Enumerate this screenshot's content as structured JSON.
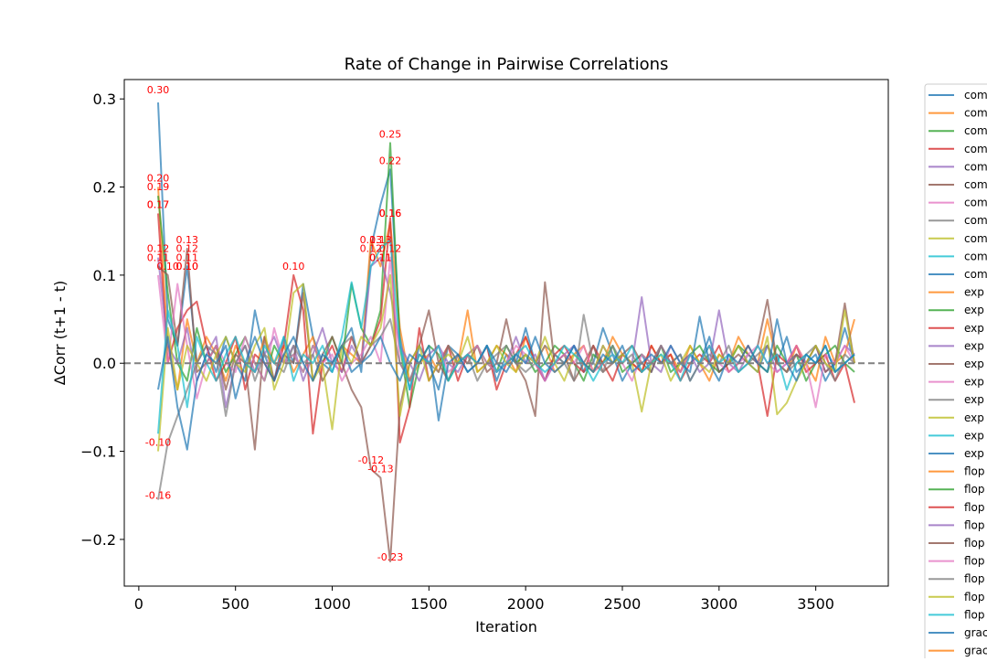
{
  "chart_data": {
    "type": "line",
    "title": "Rate of Change in Pairwise Correlations",
    "xlabel": "Iteration",
    "ylabel": "ΔCorr (t+1 - t)",
    "xlim": [
      -75,
      3875
    ],
    "ylim": [
      -0.253,
      0.322
    ],
    "xticks": [
      0,
      500,
      1000,
      1500,
      2000,
      2500,
      3000,
      3500
    ],
    "xtick_labels": [
      "0",
      "500",
      "1000",
      "1500",
      "2000",
      "2500",
      "3000",
      "3500"
    ],
    "yticks": [
      -0.2,
      -0.1,
      0.0,
      0.1,
      0.2,
      0.3
    ],
    "ytick_labels": [
      "−0.2",
      "−0.1",
      "0.0",
      "0.1",
      "0.2",
      "0.3"
    ],
    "zero_line": {
      "y": 0.0,
      "color": "#808080",
      "style": "dashed"
    },
    "grid": false,
    "legend": {
      "placement": "outside-right",
      "entries": [
        "com",
        "com",
        "com",
        "com",
        "com",
        "com",
        "com",
        "com",
        "com",
        "com",
        "com",
        "exp",
        "exp",
        "exp",
        "exp",
        "exp",
        "exp",
        "exp",
        "exp",
        "exp",
        "exp",
        "flop",
        "flop",
        "flop",
        "flop",
        "flop",
        "flop",
        "flop",
        "flop",
        "flop",
        "grac",
        "grac"
      ]
    },
    "colors": [
      "#1f77b4",
      "#ff7f0e",
      "#2ca02c",
      "#d62728",
      "#9467bd",
      "#8c564b",
      "#e377c2",
      "#7f7f7f",
      "#bcbd22",
      "#17becf"
    ],
    "x": [
      100,
      150,
      200,
      250,
      300,
      350,
      400,
      450,
      500,
      550,
      600,
      650,
      700,
      750,
      800,
      850,
      900,
      950,
      1000,
      1050,
      1100,
      1150,
      1200,
      1250,
      1300,
      1350,
      1400,
      1450,
      1500,
      1550,
      1600,
      1650,
      1700,
      1750,
      1800,
      1850,
      1900,
      1950,
      2000,
      2050,
      2100,
      2150,
      2200,
      2250,
      2300,
      2350,
      2400,
      2450,
      2500,
      2550,
      2600,
      2650,
      2700,
      2750,
      2800,
      2850,
      2900,
      2950,
      3000,
      3050,
      3100,
      3150,
      3200,
      3250,
      3300,
      3350,
      3400,
      3450,
      3500,
      3550,
      3600,
      3650,
      3700
    ],
    "series": [
      {
        "values": [
          0.296,
          0.05,
          0.02,
          0.11,
          0.0,
          0.02,
          -0.01,
          0.03,
          0.0,
          -0.02,
          0.06,
          0.01,
          -0.02,
          0.03,
          0.0,
          0.09,
          0.03,
          0.0,
          -0.01,
          0.02,
          0.04,
          -0.01,
          0.13,
          0.18,
          0.22,
          0.03,
          -0.03,
          0.02,
          0.0,
          -0.03,
          0.02,
          0.01,
          -0.01,
          0.0,
          0.02,
          -0.02,
          0.01,
          0.0,
          0.04,
          0.0,
          -0.02,
          0.01,
          0.0,
          0.02,
          -0.01,
          0.0,
          0.04,
          0.01,
          -0.02,
          0.0,
          0.01,
          -0.01,
          0.02,
          0.0,
          0.01,
          -0.02,
          0.0,
          0.03,
          -0.01,
          0.0,
          0.02,
          0.0,
          -0.01,
          0.02,
          0.0,
          0.03,
          -0.01,
          0.0,
          0.01,
          -0.02,
          0.0,
          0.04,
          0.0
        ]
      },
      {
        "values": [
          0.2,
          0.02,
          -0.03,
          0.05,
          0.0,
          0.03,
          0.01,
          -0.02,
          0.02,
          0.0,
          -0.01,
          0.03,
          0.0,
          0.02,
          -0.01,
          0.01,
          0.03,
          -0.02,
          0.0,
          0.02,
          0.01,
          0.0,
          0.14,
          0.11,
          0.16,
          0.04,
          -0.02,
          0.0,
          0.01,
          -0.01,
          0.02,
          0.0,
          0.06,
          -0.01,
          0.0,
          0.02,
          0.01,
          -0.01,
          0.03,
          0.0,
          0.02,
          -0.01,
          0.0,
          0.01,
          0.02,
          -0.01,
          0.0,
          0.03,
          0.01,
          0.0,
          -0.01,
          0.02,
          0.0,
          0.01,
          -0.01,
          0.02,
          0.0,
          -0.02,
          0.01,
          0.0,
          0.03,
          0.01,
          0.0,
          0.05,
          0.0,
          -0.01,
          0.02,
          0.0,
          -0.02,
          0.03,
          0.0,
          0.01,
          0.05
        ]
      },
      {
        "values": [
          0.19,
          0.08,
          0.0,
          -0.02,
          0.04,
          0.0,
          0.02,
          -0.01,
          0.01,
          0.03,
          0.0,
          -0.02,
          0.02,
          0.0,
          0.01,
          -0.01,
          0.02,
          0.0,
          0.03,
          0.0,
          0.09,
          0.04,
          0.02,
          0.06,
          0.25,
          0.02,
          -0.05,
          0.0,
          0.02,
          0.01,
          -0.02,
          0.0,
          0.01,
          0.02,
          0.0,
          -0.01,
          0.02,
          0.0,
          0.01,
          -0.01,
          0.0,
          0.02,
          0.01,
          0.0,
          -0.02,
          0.01,
          0.0,
          0.02,
          -0.01,
          0.0,
          0.01,
          0.0,
          0.02,
          -0.01,
          0.0,
          0.01,
          0.02,
          0.0,
          -0.01,
          0.0,
          0.02,
          0.01,
          0.0,
          -0.01,
          0.02,
          0.0,
          0.01,
          -0.02,
          0.0,
          0.01,
          0.02,
          0.0,
          -0.01
        ]
      },
      {
        "values": [
          0.17,
          0.0,
          0.04,
          0.06,
          0.07,
          0.02,
          -0.02,
          0.0,
          0.03,
          -0.03,
          0.01,
          0.0,
          -0.02,
          0.02,
          0.1,
          0.06,
          -0.08,
          0.0,
          0.02,
          -0.01,
          0.03,
          0.0,
          0.02,
          0.05,
          0.165,
          -0.09,
          -0.05,
          0.04,
          -0.02,
          0.0,
          0.02,
          -0.02,
          0.01,
          0.0,
          0.02,
          -0.03,
          0.0,
          0.01,
          0.03,
          0.0,
          -0.02,
          0.01,
          0.02,
          0.0,
          -0.01,
          0.02,
          0.0,
          -0.02,
          0.01,
          0.0,
          -0.01,
          0.02,
          0.0,
          0.01,
          -0.02,
          0.0,
          0.01,
          0.0,
          0.02,
          -0.01,
          0.0,
          0.02,
          0.0,
          -0.06,
          0.01,
          0.0,
          0.02,
          -0.01,
          0.0,
          0.01,
          -0.02,
          0.0,
          -0.045
        ]
      },
      {
        "values": [
          0.12,
          0.02,
          0.0,
          0.04,
          -0.02,
          0.01,
          0.03,
          -0.05,
          0.0,
          0.02,
          -0.01,
          0.01,
          0.03,
          0.0,
          0.02,
          -0.02,
          0.01,
          0.04,
          0.0,
          -0.01,
          0.02,
          0.0,
          0.11,
          0.12,
          0.08,
          0.02,
          0.0,
          -0.02,
          0.01,
          0.02,
          0.0,
          -0.01,
          0.01,
          0.0,
          0.02,
          -0.01,
          0.0,
          0.03,
          0.0,
          0.01,
          -0.02,
          0.0,
          0.01,
          0.02,
          0.0,
          -0.01,
          0.02,
          0.0,
          0.01,
          0.0,
          0.075,
          0.0,
          -0.01,
          0.02,
          0.0,
          0.01,
          -0.01,
          0.0,
          0.06,
          0.0,
          -0.01,
          0.01,
          0.0,
          0.02,
          -0.01,
          0.0,
          0.01,
          0.0,
          0.02,
          -0.01,
          0.0,
          0.02,
          0.01
        ]
      },
      {
        "values": [
          0.11,
          0.1,
          0.02,
          0.13,
          -0.01,
          0.0,
          0.02,
          -0.03,
          0.01,
          0.0,
          -0.098,
          0.03,
          -0.02,
          0.01,
          0.0,
          0.08,
          -0.02,
          0.01,
          0.03,
          0.0,
          -0.03,
          -0.05,
          -0.12,
          -0.13,
          -0.225,
          -0.05,
          0.0,
          0.02,
          0.06,
          0.0,
          -0.02,
          0.01,
          0.0,
          0.02,
          -0.01,
          0.0,
          0.05,
          0.0,
          -0.02,
          -0.06,
          0.092,
          0.0,
          0.01,
          -0.02,
          0.0,
          0.02,
          -0.01,
          0.0,
          0.01,
          0.02,
          0.0,
          -0.01,
          0.02,
          0.0,
          -0.01,
          0.01,
          0.0,
          0.02,
          -0.01,
          0.0,
          0.01,
          0.0,
          0.02,
          0.072,
          0.0,
          -0.01,
          0.01,
          0.0,
          0.02,
          -0.01,
          0.0,
          0.068,
          0.0
        ]
      },
      {
        "values": [
          0.1,
          0.0,
          0.09,
          0.02,
          -0.04,
          0.0,
          0.02,
          0.0,
          -0.01,
          0.03,
          0.0,
          -0.02,
          0.04,
          0.0,
          0.01,
          -0.01,
          0.02,
          0.0,
          0.01,
          -0.02,
          0.0,
          0.01,
          0.03,
          0.0,
          0.12,
          0.0,
          -0.02,
          0.01,
          0.0,
          0.02,
          -0.01,
          0.0,
          0.01,
          0.02,
          0.0,
          -0.01,
          0.0,
          0.02,
          0.01,
          0.0,
          -0.02,
          0.0,
          0.01,
          0.0,
          0.02,
          -0.01,
          0.0,
          0.01,
          0.0,
          -0.02,
          0.01,
          0.0,
          0.02,
          0.0,
          -0.01,
          0.01,
          0.0,
          0.02,
          0.0,
          -0.01,
          0.0,
          0.01,
          0.02,
          0.0,
          -0.01,
          0.0,
          0.02,
          0.0,
          -0.05,
          0.01,
          0.0,
          0.02,
          0.0
        ]
      },
      {
        "values": [
          -0.155,
          -0.09,
          -0.06,
          -0.03,
          0.0,
          0.02,
          0.01,
          -0.06,
          0.0,
          0.02,
          -0.02,
          0.01,
          0.0,
          -0.01,
          0.02,
          0.0,
          0.01,
          -0.02,
          0.0,
          0.02,
          0.03,
          0.0,
          0.02,
          0.03,
          0.05,
          0.0,
          -0.02,
          0.01,
          0.0,
          -0.01,
          0.02,
          0.0,
          0.01,
          -0.02,
          0.0,
          0.01,
          0.02,
          0.0,
          -0.01,
          0.0,
          0.02,
          0.01,
          0.0,
          -0.02,
          0.055,
          0.0,
          -0.01,
          0.02,
          0.0,
          0.01,
          -0.01,
          0.0,
          0.02,
          0.0,
          0.01,
          -0.02,
          0.0,
          0.01,
          0.0,
          0.02,
          -0.01,
          0.0,
          0.01,
          0.02,
          0.0,
          -0.01,
          0.0,
          0.01,
          0.02,
          0.0,
          -0.02,
          0.01,
          0.0
        ]
      },
      {
        "values": [
          -0.1,
          0.04,
          -0.03,
          0.02,
          0.0,
          -0.02,
          0.01,
          0.03,
          0.0,
          -0.01,
          0.02,
          0.04,
          -0.03,
          0.0,
          0.08,
          0.09,
          -0.02,
          0.0,
          -0.075,
          0.02,
          0.0,
          0.03,
          0.02,
          0.04,
          0.1,
          -0.06,
          0.0,
          0.02,
          -0.02,
          0.0,
          0.01,
          0.0,
          0.03,
          -0.01,
          0.0,
          0.02,
          0.0,
          -0.01,
          0.01,
          0.0,
          0.03,
          0.0,
          -0.02,
          0.01,
          0.0,
          -0.01,
          0.02,
          0.0,
          0.01,
          0.0,
          -0.055,
          0.0,
          0.01,
          -0.02,
          0.0,
          0.02,
          0.0,
          -0.01,
          0.01,
          0.0,
          0.02,
          0.0,
          -0.01,
          0.03,
          -0.058,
          -0.045,
          -0.02,
          0.0,
          0.02,
          0.0,
          -0.01,
          0.06,
          0.0
        ]
      },
      {
        "values": [
          -0.08,
          0.06,
          0.02,
          -0.05,
          0.03,
          0.0,
          -0.02,
          0.01,
          0.03,
          0.0,
          -0.01,
          0.02,
          0.0,
          0.03,
          -0.02,
          0.01,
          0.0,
          0.02,
          -0.01,
          0.03,
          0.092,
          0.04,
          0.11,
          0.13,
          0.14,
          0.02,
          -0.03,
          0.01,
          0.0,
          0.02,
          -0.02,
          0.0,
          0.01,
          0.0,
          0.02,
          -0.01,
          0.0,
          0.01,
          0.02,
          0.0,
          -0.01,
          0.0,
          0.02,
          0.01,
          0.0,
          -0.02,
          0.0,
          0.01,
          0.0,
          0.02,
          -0.01,
          0.0,
          0.01,
          0.0,
          -0.02,
          0.01,
          0.0,
          0.02,
          0.0,
          0.01,
          -0.01,
          0.0,
          0.02,
          0.0,
          0.01,
          -0.03,
          0.0,
          0.01,
          0.0,
          0.02,
          -0.01,
          0.0,
          0.01
        ]
      },
      {
        "values": [
          -0.03,
          0.03,
          -0.05,
          -0.098,
          -0.02,
          0.01,
          0.0,
          0.02,
          -0.04,
          0.0,
          0.03,
          0.0,
          -0.02,
          0.01,
          0.03,
          0.0,
          -0.02,
          0.01,
          0.0,
          0.02,
          -0.01,
          0.0,
          0.01,
          0.03,
          0.0,
          -0.02,
          0.01,
          0.0,
          0.02,
          -0.065,
          0.0,
          0.01,
          -0.01,
          0.0,
          0.02,
          0.0,
          -0.01,
          0.01,
          0.0,
          0.03,
          0.0,
          -0.01,
          0.0,
          0.02,
          0.0,
          -0.01,
          0.01,
          0.0,
          0.02,
          -0.01,
          0.0,
          0.01,
          0.0,
          0.02,
          0.0,
          -0.01,
          0.053,
          0.0,
          -0.02,
          0.01,
          0.0,
          0.02,
          0.0,
          -0.01,
          0.05,
          0.0,
          -0.02,
          0.01,
          0.0,
          0.02,
          -0.01,
          0.0,
          0.01
        ]
      }
    ],
    "annotations": [
      {
        "x": 100,
        "y": 0.3,
        "text": "0.30"
      },
      {
        "x": 100,
        "y": 0.2,
        "text": "0.20"
      },
      {
        "x": 100,
        "y": 0.19,
        "text": "0.19"
      },
      {
        "x": 100,
        "y": 0.17,
        "text": "0.17"
      },
      {
        "x": 100,
        "y": 0.17,
        "text": "0.17"
      },
      {
        "x": 100,
        "y": 0.12,
        "text": "0.12"
      },
      {
        "x": 100,
        "y": 0.11,
        "text": "0.11"
      },
      {
        "x": 150,
        "y": 0.1,
        "text": "0.10"
      },
      {
        "x": 250,
        "y": 0.13,
        "text": "0.13"
      },
      {
        "x": 250,
        "y": 0.12,
        "text": "0.12"
      },
      {
        "x": 250,
        "y": 0.11,
        "text": "0.11"
      },
      {
        "x": 250,
        "y": 0.1,
        "text": "0.10"
      },
      {
        "x": 250,
        "y": 0.1,
        "text": "0.10"
      },
      {
        "x": 800,
        "y": 0.1,
        "text": "0.10"
      },
      {
        "x": 1200,
        "y": 0.13,
        "text": "0.13"
      },
      {
        "x": 1250,
        "y": 0.13,
        "text": "0.13"
      },
      {
        "x": 1200,
        "y": 0.12,
        "text": "0.12"
      },
      {
        "x": 1300,
        "y": 0.12,
        "text": "0.12"
      },
      {
        "x": 1250,
        "y": 0.11,
        "text": "0.11"
      },
      {
        "x": 1250,
        "y": 0.11,
        "text": "0.11"
      },
      {
        "x": 1300,
        "y": 0.25,
        "text": "0.25"
      },
      {
        "x": 1300,
        "y": 0.22,
        "text": "0.22"
      },
      {
        "x": 1300,
        "y": 0.16,
        "text": "0.16"
      },
      {
        "x": 1300,
        "y": 0.16,
        "text": "0.16"
      },
      {
        "x": 1300,
        "y": 0.16,
        "text": "0.16"
      },
      {
        "x": 100,
        "y": -0.1,
        "text": "-0.10"
      },
      {
        "x": 100,
        "y": -0.16,
        "text": "-0.16"
      },
      {
        "x": 1200,
        "y": -0.12,
        "text": "-0.12"
      },
      {
        "x": 1250,
        "y": -0.13,
        "text": "-0.13"
      },
      {
        "x": 1300,
        "y": -0.23,
        "text": "-0.23"
      }
    ]
  }
}
